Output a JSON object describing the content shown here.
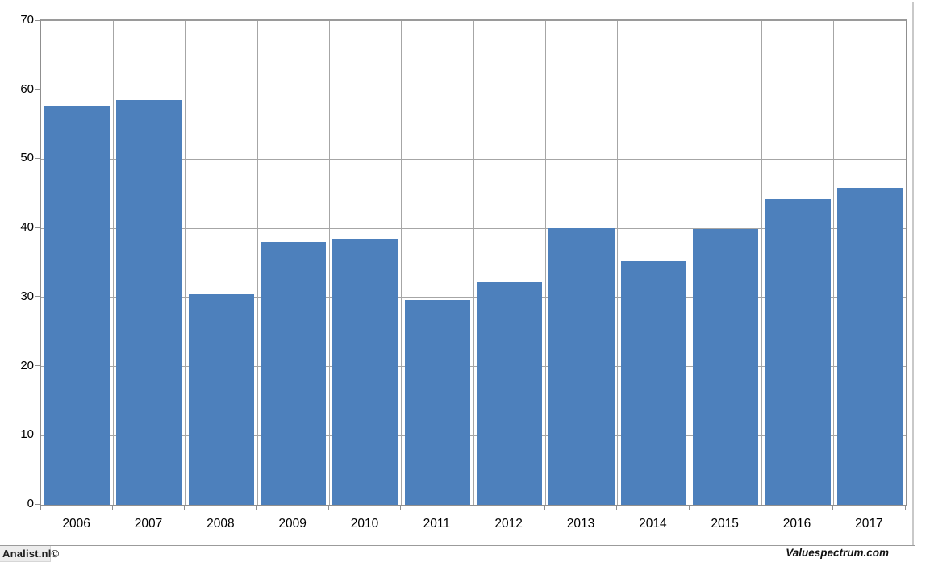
{
  "chart_data": {
    "type": "bar",
    "title": "",
    "xlabel": "",
    "ylabel": "",
    "categories": [
      "2006",
      "2007",
      "2008",
      "2009",
      "2010",
      "2011",
      "2012",
      "2013",
      "2014",
      "2015",
      "2016",
      "2017"
    ],
    "values": [
      57.7,
      58.6,
      30.5,
      38.0,
      38.5,
      29.6,
      32.2,
      40.0,
      35.2,
      39.9,
      44.2,
      45.9
    ],
    "ylim": [
      0,
      70
    ],
    "yticks": [
      0,
      10,
      20,
      30,
      40,
      50,
      60,
      70
    ],
    "grid": true,
    "legend_position": "none",
    "bar_color": "#4d80bc",
    "gridline_color": "#a6a6a6",
    "axis_color": "#8f8f8f",
    "label_color": "#000000"
  },
  "footer": {
    "left": "Analist.nl©",
    "right": "Valuespectrum.com"
  }
}
